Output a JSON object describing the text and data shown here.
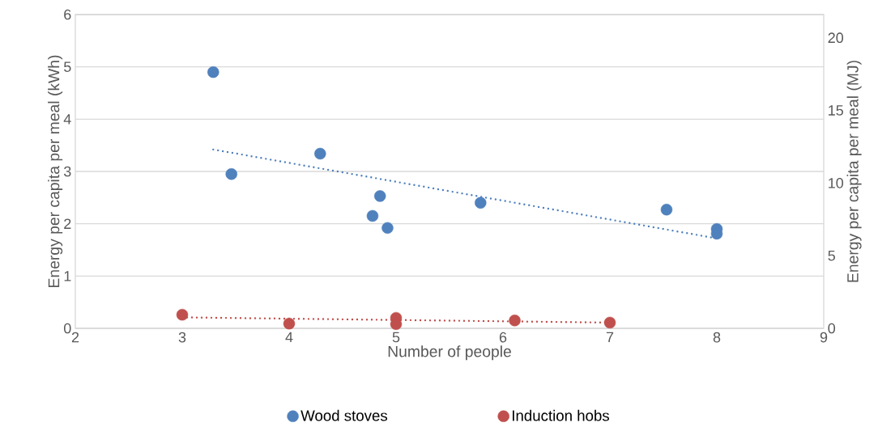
{
  "chart_data": {
    "type": "scatter",
    "xlabel": "Number of people",
    "ylabel": "Energy per capita per meal (kWh)",
    "y2label": "Energy per capita per meal (MJ)",
    "xlim": [
      2,
      9
    ],
    "xticks": [
      2,
      3,
      4,
      5,
      6,
      7,
      8,
      9
    ],
    "ylim": [
      0,
      6
    ],
    "yticks": [
      0,
      1,
      2,
      3,
      4,
      5,
      6
    ],
    "y2lim": [
      0,
      21.6
    ],
    "y2ticks": [
      0,
      5,
      10,
      15,
      20
    ],
    "grid": "y",
    "legend": "bottom",
    "marker": "circle",
    "series": [
      {
        "name": "Wood stoves",
        "color": "#4f81bd",
        "x": [
          3.29,
          3.46,
          4.29,
          4.85,
          4.78,
          4.92,
          5.79,
          7.53,
          8.0,
          8.0
        ],
        "values": [
          4.9,
          2.95,
          3.34,
          2.53,
          2.15,
          1.92,
          2.4,
          2.27,
          1.9,
          1.81
        ]
      },
      {
        "name": "Induction hobs",
        "color": "#c0504d",
        "x": [
          3,
          4,
          5,
          5,
          6.11,
          7
        ],
        "values": [
          0.26,
          0.09,
          0.2,
          0.08,
          0.15,
          0.11
        ]
      },
      {
        "type": "line",
        "color": "#4f81bd",
        "line_style": "dotted",
        "marker": "none",
        "x": [
          3.29,
          8.0
        ],
        "values": [
          3.42,
          1.72
        ]
      },
      {
        "type": "line",
        "color": "#c0504d",
        "line_style": "dotted",
        "marker": "none",
        "x": [
          3,
          7
        ],
        "values": [
          0.21,
          0.11
        ]
      }
    ]
  }
}
